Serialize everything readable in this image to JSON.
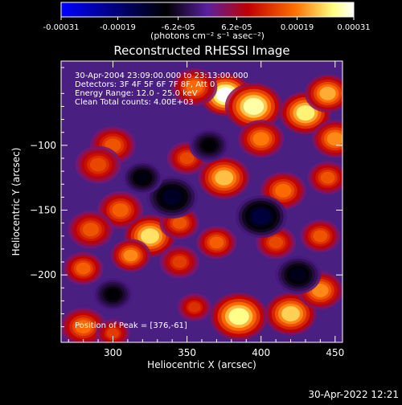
{
  "colorbar": {
    "ticks": [
      {
        "value": -0.00031,
        "label": "-0.00031"
      },
      {
        "value": -0.00019,
        "label": "-0.00019"
      },
      {
        "value": -6.2e-05,
        "label": "-6.2e-05"
      },
      {
        "value": 6.2e-05,
        "label": "6.2e-05"
      },
      {
        "value": 0.00019,
        "label": "0.00019"
      },
      {
        "value": 0.00031,
        "label": "0.00031"
      }
    ],
    "range": [
      -0.00031,
      0.00031
    ],
    "unit_label": "(photons cm⁻² s⁻¹ asec⁻²)",
    "colors": [
      "#0000ff",
      "#000000",
      "#5a20a0",
      "#c00000",
      "#ff7000",
      "#ffff80",
      "#ffffff"
    ]
  },
  "chart_data": {
    "type": "heatmap",
    "title": "Reconstructed RHESSI Image",
    "xlabel": "Heliocentric X (arcsec)",
    "ylabel": "Heliocentric Y (arcsec)",
    "xlim": [
      265,
      455
    ],
    "ylim": [
      -252,
      -35
    ],
    "xticks": [
      {
        "value": 300,
        "label": "300"
      },
      {
        "value": 350,
        "label": "350"
      },
      {
        "value": 400,
        "label": "400"
      },
      {
        "value": 450,
        "label": "450"
      }
    ],
    "yticks": [
      {
        "value": -100,
        "label": "−100"
      },
      {
        "value": -150,
        "label": "−150"
      },
      {
        "value": -200,
        "label": "−200"
      }
    ],
    "annotations": [
      "30-Apr-2004 23:09:00.000 to 23:13:00.000",
      "Detectors: 3F 4F 5F 6F 7F 8F, Att 0",
      "Energy Range: 12.0 - 25.0 keV",
      "Clean     Total counts: 4.00E+03"
    ],
    "peak_label": "Position of Peak = [376,-61]",
    "peak": [
      376,
      -61
    ],
    "blobs": [
      {
        "x": 376,
        "y": -61,
        "r": 9,
        "v": 0.00031
      },
      {
        "x": 395,
        "y": -70,
        "r": 10,
        "v": 0.00028
      },
      {
        "x": 430,
        "y": -75,
        "r": 9,
        "v": 0.00026
      },
      {
        "x": 445,
        "y": -60,
        "r": 8,
        "v": 0.00022
      },
      {
        "x": 355,
        "y": -55,
        "r": 8,
        "v": 0.00018
      },
      {
        "x": 450,
        "y": -95,
        "r": 8,
        "v": 0.0002
      },
      {
        "x": 400,
        "y": -95,
        "r": 8,
        "v": 0.00019
      },
      {
        "x": 300,
        "y": -100,
        "r": 8,
        "v": 0.00016
      },
      {
        "x": 290,
        "y": -115,
        "r": 8,
        "v": 0.00015
      },
      {
        "x": 350,
        "y": -110,
        "r": 7,
        "v": 0.00015
      },
      {
        "x": 375,
        "y": -125,
        "r": 9,
        "v": 0.00023
      },
      {
        "x": 415,
        "y": -135,
        "r": 8,
        "v": 0.00018
      },
      {
        "x": 445,
        "y": -125,
        "r": 7,
        "v": 0.00016
      },
      {
        "x": 305,
        "y": -150,
        "r": 8,
        "v": 0.00017
      },
      {
        "x": 285,
        "y": -165,
        "r": 8,
        "v": 0.00016
      },
      {
        "x": 280,
        "y": -195,
        "r": 7,
        "v": 0.00017
      },
      {
        "x": 325,
        "y": -170,
        "r": 9,
        "v": 0.00025
      },
      {
        "x": 312,
        "y": -185,
        "r": 7,
        "v": 0.0002
      },
      {
        "x": 345,
        "y": -160,
        "r": 7,
        "v": 0.00016
      },
      {
        "x": 345,
        "y": -190,
        "r": 7,
        "v": 0.00014
      },
      {
        "x": 370,
        "y": -175,
        "r": 7,
        "v": 0.00017
      },
      {
        "x": 410,
        "y": -175,
        "r": 7,
        "v": 0.00015
      },
      {
        "x": 440,
        "y": -170,
        "r": 7,
        "v": 0.00016
      },
      {
        "x": 355,
        "y": -225,
        "r": 6,
        "v": 0.00013
      },
      {
        "x": 385,
        "y": -232,
        "r": 10,
        "v": 0.00027
      },
      {
        "x": 420,
        "y": -230,
        "r": 9,
        "v": 0.00024
      },
      {
        "x": 440,
        "y": -212,
        "r": 8,
        "v": 0.0002
      },
      {
        "x": 280,
        "y": -240,
        "r": 8,
        "v": 0.00018
      },
      {
        "x": 300,
        "y": -245,
        "r": 6,
        "v": 0.00014
      },
      {
        "x": 340,
        "y": -140,
        "r": -9,
        "v": -0.00012
      },
      {
        "x": 400,
        "y": -155,
        "r": -9,
        "v": -0.00014
      },
      {
        "x": 365,
        "y": -100,
        "r": -7,
        "v": -9e-05
      },
      {
        "x": 320,
        "y": -125,
        "r": -7,
        "v": -0.0001
      },
      {
        "x": 425,
        "y": -200,
        "r": -8,
        "v": -0.00011
      },
      {
        "x": 300,
        "y": -215,
        "r": -7,
        "v": -9e-05
      }
    ]
  },
  "footer": {
    "timestamp": "30-Apr-2022 12:21"
  }
}
